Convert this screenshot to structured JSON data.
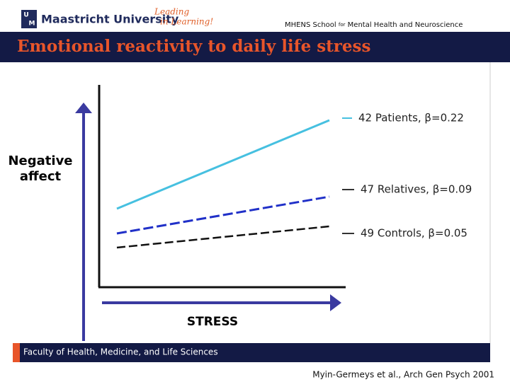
{
  "header": {
    "university": "Maastricht University",
    "tagline": [
      "Leading",
      "in Learning!"
    ],
    "logo_letters": [
      "U",
      "M"
    ],
    "school": {
      "name": "MHENS School",
      "for": "for",
      "field": "Mental Health and Neuroscience"
    }
  },
  "title": "Emotional reactivity to daily life stress",
  "diagram": {
    "y_label": [
      "Negative",
      "affect"
    ],
    "x_label": "STRESS",
    "legend": [
      "42 Patients, β=0.22",
      "47 Relatives, β=0.09",
      "49 Controls, β=0.05"
    ]
  },
  "footer": "Faculty of Health, Medicine, and Life Sciences",
  "citation": "Myin-Germeys et al., Arch Gen Psych 2001"
}
